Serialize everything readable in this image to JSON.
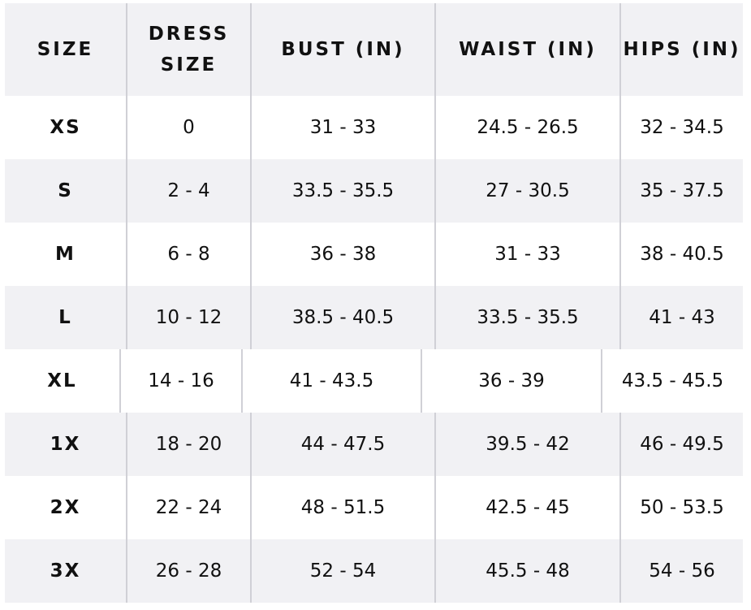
{
  "table": {
    "header": [
      "SIZE",
      "DRESS SIZE",
      "BUST (IN)",
      "WAIST (IN)",
      "HIPS (IN)"
    ],
    "rows": [
      [
        "XS",
        "0",
        "31 - 33",
        "24.5 - 26.5",
        "32 - 34.5"
      ],
      [
        "S",
        "2 - 4",
        "33.5 - 35.5",
        "27 - 30.5",
        "35 - 37.5"
      ],
      [
        "M",
        "6 - 8",
        "36 - 38",
        "31 - 33",
        "38 - 40.5"
      ],
      [
        "L",
        "10 - 12",
        "38.5 - 40.5",
        "33.5 - 35.5",
        "41 - 43"
      ],
      [
        "XL",
        "14 - 16",
        "41 - 43.5",
        "36 - 39",
        "43.5 - 45.5"
      ],
      [
        "1X",
        "18 - 20",
        "44 - 47.5",
        "39.5 - 42",
        "46 - 49.5"
      ],
      [
        "2X",
        "22 - 24",
        "48 - 51.5",
        "42.5 - 45",
        "50 - 53.5"
      ],
      [
        "3X",
        "26 - 28",
        "52 - 54",
        "45.5 - 48",
        "54 - 56"
      ]
    ]
  }
}
